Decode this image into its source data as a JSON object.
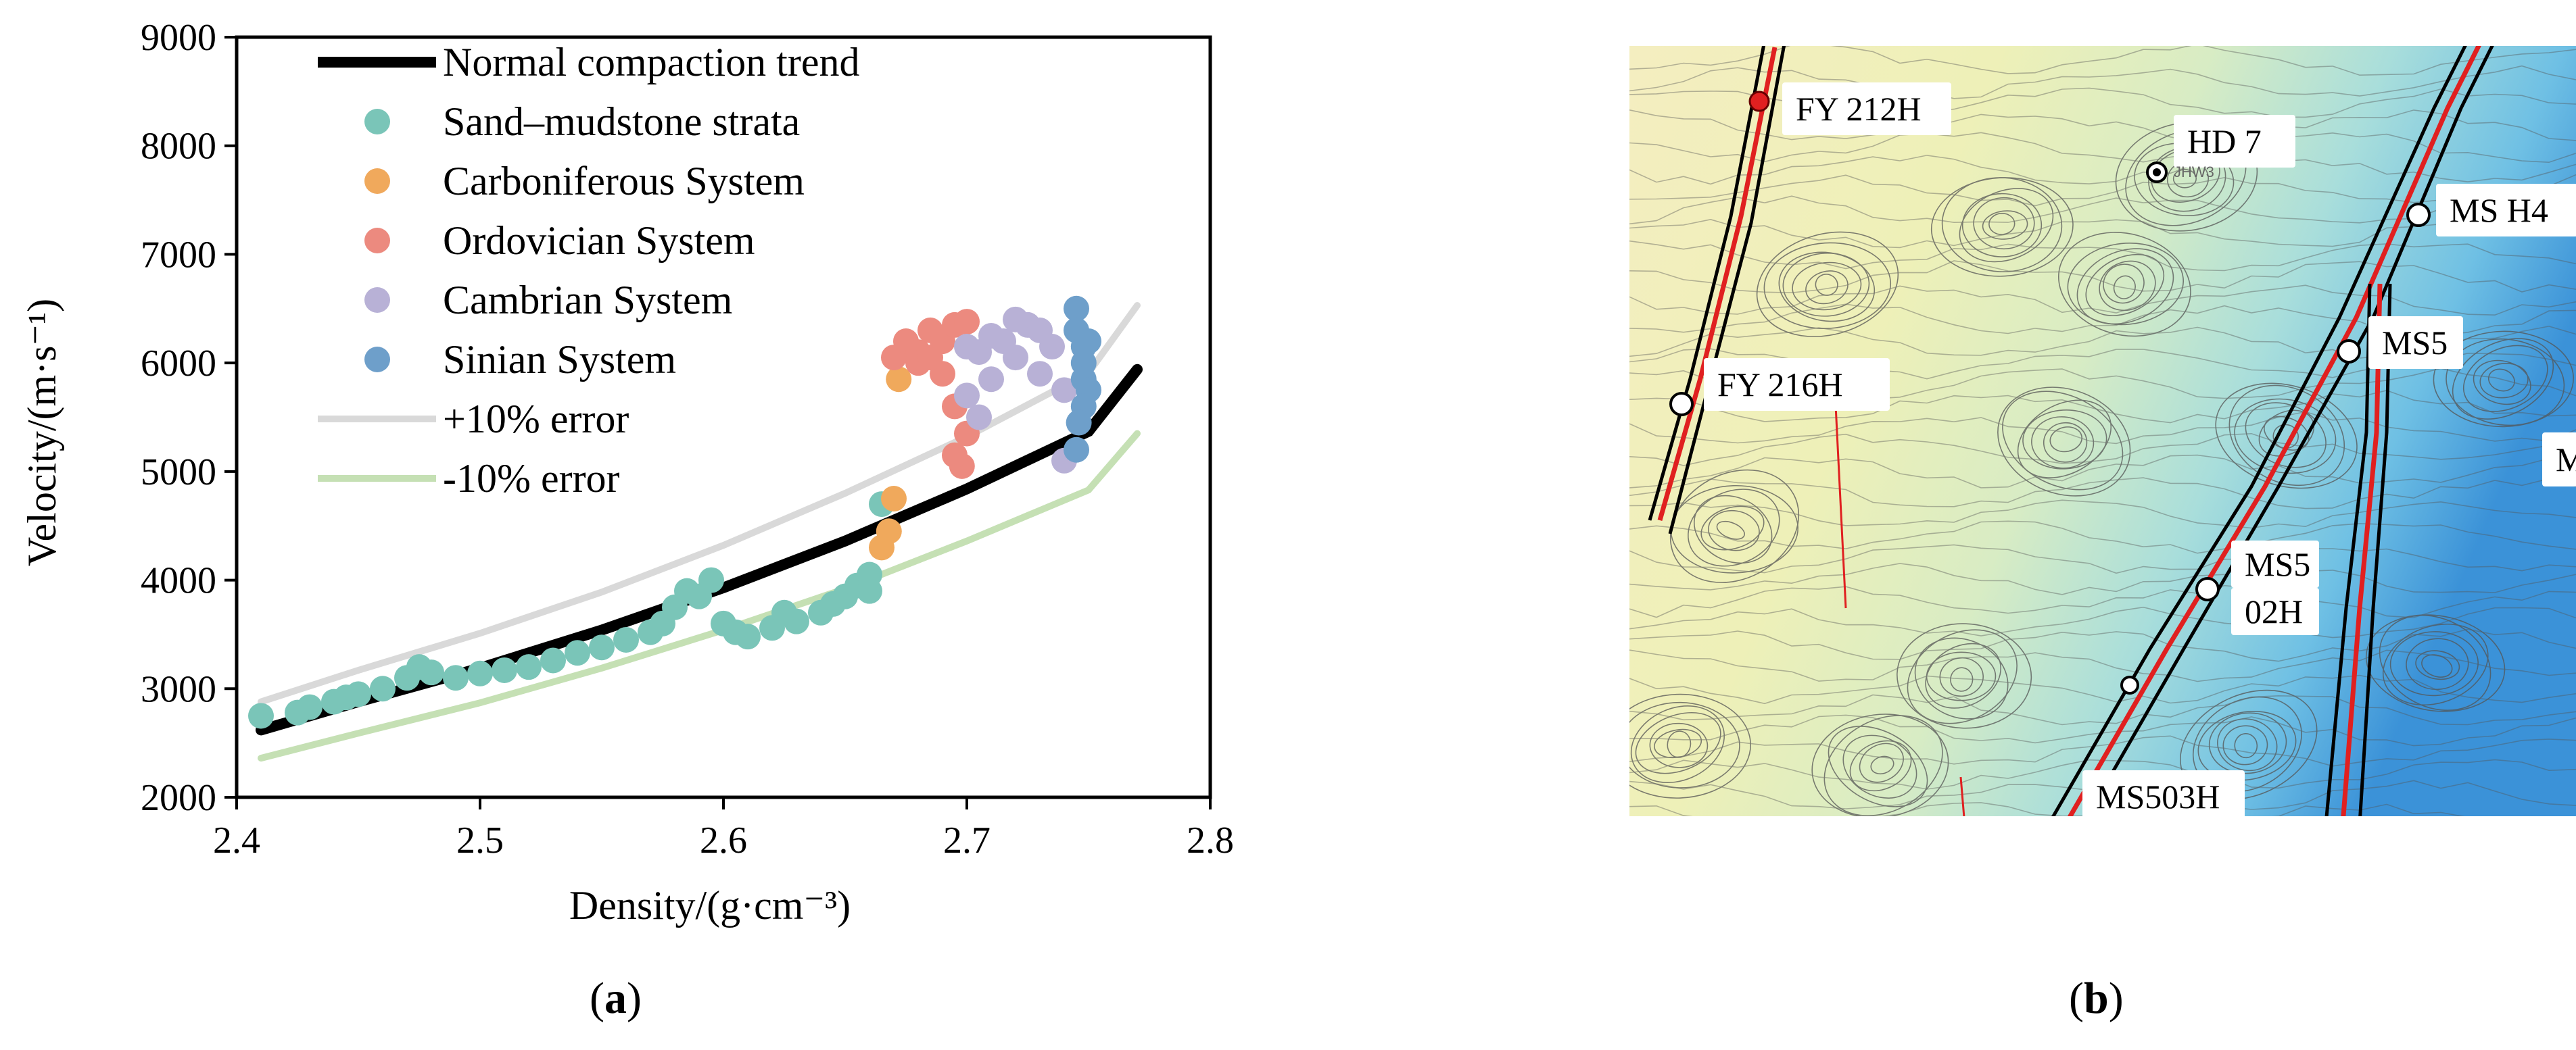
{
  "chart_data": [
    {
      "type": "scatter",
      "xlabel": "Density/(g·cm⁻³)",
      "ylabel": "Velocity/(m·s⁻¹)",
      "xlim": [
        2.4,
        2.8
      ],
      "ylim": [
        2000,
        9000
      ],
      "x_ticks": [
        "2.4",
        "2.5",
        "2.6",
        "2.7",
        "2.8"
      ],
      "y_ticks": [
        "2000",
        "3000",
        "4000",
        "5000",
        "6000",
        "7000",
        "8000",
        "9000"
      ],
      "grid": false,
      "legend_position": "top-left",
      "lines": [
        {
          "name": "Normal compaction trend",
          "color": "#000000",
          "x": [
            2.41,
            2.45,
            2.5,
            2.55,
            2.6,
            2.65,
            2.7,
            2.75,
            2.77
          ],
          "y": [
            2620,
            2880,
            3190,
            3540,
            3930,
            4360,
            4840,
            5370,
            5940
          ]
        },
        {
          "name": "+10% error",
          "color": "#d9d9d9",
          "x": [
            2.41,
            2.45,
            2.5,
            2.55,
            2.6,
            2.65,
            2.7,
            2.75,
            2.77
          ],
          "y": [
            2880,
            3170,
            3510,
            3890,
            4320,
            4800,
            5320,
            5910,
            6530
          ]
        },
        {
          "name": "-10%  error",
          "color": "#c5e0b4",
          "x": [
            2.41,
            2.45,
            2.5,
            2.55,
            2.6,
            2.65,
            2.7,
            2.75,
            2.77
          ],
          "y": [
            2360,
            2590,
            2870,
            3190,
            3540,
            3920,
            4360,
            4830,
            5350
          ]
        }
      ],
      "series": [
        {
          "name": "Sand–mudstone strata",
          "color": "#7ac5b8",
          "points": [
            [
              2.41,
              2750
            ],
            [
              2.425,
              2780
            ],
            [
              2.43,
              2830
            ],
            [
              2.44,
              2880
            ],
            [
              2.445,
              2920
            ],
            [
              2.45,
              2950
            ],
            [
              2.46,
              3000
            ],
            [
              2.47,
              3100
            ],
            [
              2.475,
              3200
            ],
            [
              2.48,
              3150
            ],
            [
              2.49,
              3100
            ],
            [
              2.5,
              3140
            ],
            [
              2.51,
              3170
            ],
            [
              2.52,
              3200
            ],
            [
              2.53,
              3260
            ],
            [
              2.54,
              3330
            ],
            [
              2.55,
              3380
            ],
            [
              2.56,
              3450
            ],
            [
              2.57,
              3520
            ],
            [
              2.575,
              3600
            ],
            [
              2.58,
              3750
            ],
            [
              2.585,
              3900
            ],
            [
              2.59,
              3850
            ],
            [
              2.595,
              4000
            ],
            [
              2.6,
              3600
            ],
            [
              2.605,
              3520
            ],
            [
              2.61,
              3480
            ],
            [
              2.62,
              3560
            ],
            [
              2.625,
              3700
            ],
            [
              2.63,
              3620
            ],
            [
              2.64,
              3700
            ],
            [
              2.645,
              3780
            ],
            [
              2.65,
              3850
            ],
            [
              2.655,
              3950
            ],
            [
              2.66,
              4050
            ],
            [
              2.66,
              3900
            ],
            [
              2.665,
              4700
            ]
          ]
        },
        {
          "name": "Carboniferous System",
          "color": "#f0a95c",
          "points": [
            [
              2.665,
              4300
            ],
            [
              2.668,
              4450
            ],
            [
              2.67,
              4750
            ],
            [
              2.672,
              5850
            ]
          ]
        },
        {
          "name": "Ordovician System",
          "color": "#ec8a7f",
          "points": [
            [
              2.67,
              6050
            ],
            [
              2.675,
              6200
            ],
            [
              2.68,
              6100
            ],
            [
              2.685,
              6300
            ],
            [
              2.69,
              6200
            ],
            [
              2.695,
              6350
            ],
            [
              2.7,
              6380
            ],
            [
              2.69,
              5900
            ],
            [
              2.695,
              5600
            ],
            [
              2.7,
              5350
            ],
            [
              2.698,
              5050
            ],
            [
              2.695,
              5150
            ],
            [
              2.68,
              6000
            ],
            [
              2.685,
              6050
            ]
          ]
        },
        {
          "name": "Cambrian System",
          "color": "#b8b1d6",
          "points": [
            [
              2.7,
              5700
            ],
            [
              2.705,
              6100
            ],
            [
              2.71,
              5850
            ],
            [
              2.715,
              6200
            ],
            [
              2.72,
              6050
            ],
            [
              2.725,
              6350
            ],
            [
              2.73,
              5900
            ],
            [
              2.735,
              6150
            ],
            [
              2.74,
              5750
            ],
            [
              2.7,
              6150
            ],
            [
              2.71,
              6250
            ],
            [
              2.72,
              6400
            ],
            [
              2.73,
              6300
            ],
            [
              2.74,
              5100
            ],
            [
              2.705,
              5500
            ]
          ]
        },
        {
          "name": "Sinian System",
          "color": "#6e9fca",
          "points": [
            [
              2.745,
              6500
            ],
            [
              2.745,
              6300
            ],
            [
              2.748,
              6150
            ],
            [
              2.748,
              6000
            ],
            [
              2.748,
              5850
            ],
            [
              2.75,
              5750
            ],
            [
              2.748,
              5600
            ],
            [
              2.746,
              5450
            ],
            [
              2.745,
              5200
            ],
            [
              2.75,
              6200
            ]
          ]
        }
      ],
      "panel_label": {
        "open": "(",
        "letter": "a",
        "close": ")"
      }
    }
  ],
  "map": {
    "well_labels": [
      "FY 212H",
      "HD 7",
      "MS H4",
      "MS5",
      "FY 216H",
      "MS5",
      "02H",
      "MS503H",
      "M"
    ],
    "faint_label": "JHW3",
    "fault_color": "#e02020",
    "panel_label": {
      "open": "(",
      "letter": "b",
      "close": ")"
    }
  }
}
